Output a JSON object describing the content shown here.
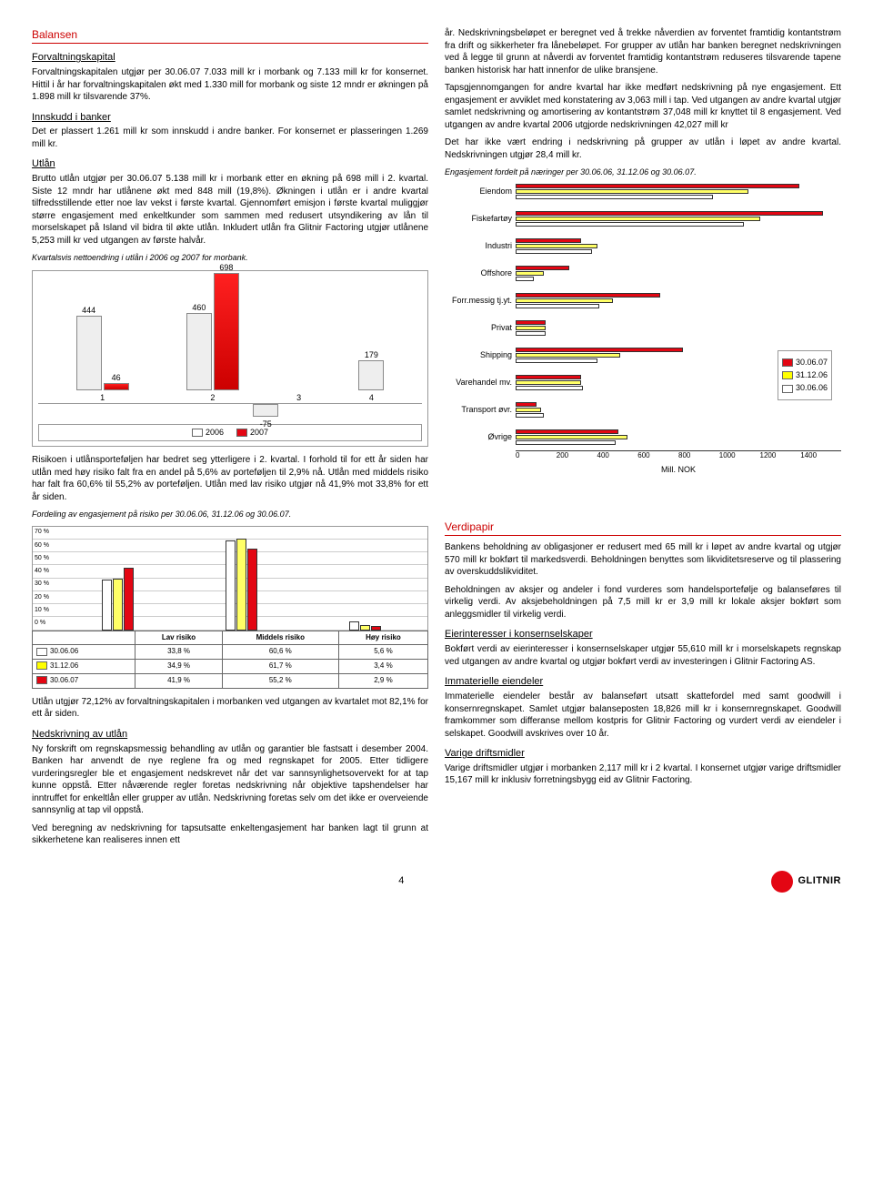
{
  "left": {
    "title": "Balansen",
    "sec1_h": "Forvaltningskapital",
    "sec1_p": "Forvaltningskapitalen utgjør per 30.06.07 7.033 mill kr i morbank og 7.133 mill kr for konsernet. Hittil i år har forvaltningskapitalen økt med 1.330 mill for morbank og siste 12 mndr er økningen på 1.898 mill kr tilsvarende 37%.",
    "sec2_h": "Innskudd i banker",
    "sec2_p": "Det er plassert 1.261 mill kr som innskudd i andre banker. For konsernet er plasseringen 1.269 mill kr.",
    "sec3_h": "Utlån",
    "sec3_p1": "Brutto utlån utgjør per 30.06.07 5.138 mill kr i morbank etter en økning på 698 mill i 2. kvartal. Siste 12 mndr har utlånene økt med 848 mill (19,8%). Økningen i utlån er i andre kvartal tilfredsstillende etter noe lav vekst i første kvartal. Gjennomført emisjon i første kvartal muliggjør større engasjement med enkeltkunder som sammen med redusert utsyndikering av lån til morselskapet på Island vil bidra til økte utlån. Inkludert utlån fra Glitnir Factoring utgjør utlånene 5,253 mill kr ved utgangen av første halvår.",
    "cap1": "Kvartalsvis nettoendring i utlån i 2006 og 2007 for morbank.",
    "bar": {
      "y_max": 700,
      "neg_min": -75,
      "groups": [
        {
          "x": "1",
          "white": 444,
          "red": 46
        },
        {
          "x": "2",
          "white": 460,
          "red": 698
        },
        {
          "x": "3",
          "white": -75,
          "red": null
        },
        {
          "x": "4",
          "white": 179,
          "red": null
        }
      ],
      "colors": {
        "2006": "#ffffff",
        "2007": "#e30613"
      },
      "legend": [
        "2006",
        "2007"
      ]
    },
    "sec3_p2": "Risikoen i utlånsporteføljen har bedret seg ytterligere i 2. kvartal. I forhold til for ett år siden har utlån med høy risiko falt fra en andel på 5,6% av porteføljen til 2,9% nå. Utlån med middels risiko har falt fra 60,6% til 55,2% av porteføljen. Utlån med lav risiko utgjør nå 41,9% mot 33,8% for ett år siden.",
    "cap2": "Fordeling av engasjement på risiko per 30.06.06, 31.12.06 og 30.06.07.",
    "risk": {
      "yticks": [
        "70 %",
        "60 %",
        "50 %",
        "40 %",
        "30 %",
        "20 %",
        "10 %",
        "0 %"
      ],
      "groups": [
        "Lav risiko",
        "Middels risiko",
        "Høy risiko"
      ],
      "series": [
        {
          "name": "30.06.06",
          "color": "#ffffff",
          "vals": [
            33.8,
            60.6,
            5.6
          ]
        },
        {
          "name": "31.12.06",
          "color": "#ffff66",
          "vals": [
            34.9,
            61.7,
            3.4
          ]
        },
        {
          "name": "30.06.07",
          "color": "#e30613",
          "vals": [
            41.9,
            55.2,
            2.9
          ]
        }
      ]
    },
    "sec3_p3": "Utlån utgjør 72,12% av forvaltningskapitalen i morbanken ved utgangen av kvartalet mot 82,1% for ett år siden.",
    "sec4_h": "Nedskrivning av utlån",
    "sec4_p1": "Ny forskrift om regnskapsmessig behandling av utlån og garantier ble fastsatt i desember 2004. Banken har anvendt de nye reglene fra og med regnskapet for 2005. Etter tidligere vurderingsregler ble et engasjement nedskrevet når det var sannsynlighetsovervekt for at tap kunne oppstå. Etter nåværende regler foretas nedskrivning når objektive tapshendelser har inntruffet for enkeltlån eller grupper av utlån. Nedskrivning foretas selv om det ikke er overveiende sannsynlig at tap vil oppstå.",
    "sec4_p2": "Ved beregning av nedskrivning for tapsutsatte enkeltengasjement har banken lagt til grunn at sikkerhetene kan realiseres innen ett"
  },
  "right": {
    "p1": "år. Nedskrivningsbeløpet er beregnet ved å trekke nåverdien av forventet framtidig kontantstrøm fra drift og sikkerheter fra lånebeløpet. For grupper av utlån har banken beregnet nedskrivningen ved å legge til grunn at nåverdi av forventet framtidig kontantstrøm reduseres tilsvarende tapene banken historisk har hatt innenfor de ulike bransjene.",
    "p2": "Tapsgjennomgangen for andre kvartal har ikke medført nedskrivning på nye engasjement. Ett engasjement er avviklet med konstatering av 3,063 mill i tap. Ved utgangen av andre kvartal utgjør samlet nedskrivning og amortisering av kontantstrøm 37,048 mill kr knyttet til 8 engasjement. Ved utgangen av andre kvartal 2006 utgjorde nedskrivningen 42,027 mill kr",
    "p3": "Det har ikke vært endring i nedskrivning på grupper av utlån i løpet av andre kvartal. Nedskrivningen utgjør 28,4 mill kr.",
    "cap3": "Engasjement fordelt på næringer per 30.06.06, 31.12.06 og 30.06.07.",
    "hbar": {
      "x_max": 1400,
      "x_ticks": [
        0,
        200,
        400,
        600,
        800,
        1000,
        1200,
        1400
      ],
      "x_label": "Mill. NOK",
      "categories": [
        "Eiendom",
        "Fiskefartøy",
        "Industri",
        "Offshore",
        "Forr.messig tj.yt.",
        "Privat",
        "Shipping",
        "Varehandel mv.",
        "Transport øvr.",
        "Øvrige"
      ],
      "series_legend": [
        "30.06.07",
        "31.12.06",
        "30.06.06"
      ],
      "colors": [
        "#e30613",
        "#ffff66",
        "#ffffff"
      ],
      "data": [
        [
          1220,
          1000,
          850
        ],
        [
          1320,
          1050,
          980
        ],
        [
          280,
          350,
          330
        ],
        [
          230,
          120,
          80
        ],
        [
          620,
          420,
          360
        ],
        [
          130,
          130,
          130
        ],
        [
          720,
          450,
          350
        ],
        [
          280,
          280,
          290
        ],
        [
          90,
          110,
          120
        ],
        [
          440,
          480,
          430
        ]
      ]
    },
    "sec5_h": "Verdipapir",
    "sec5_p": "Bankens beholdning av obligasjoner er redusert med 65 mill kr i løpet av andre kvartal og utgjør 570 mill kr bokført til markedsverdi. Beholdningen benyttes som likviditetsreserve og til plassering av overskuddslikviditet.",
    "sec5_p2": "Beholdningen av aksjer og andeler i fond vurderes som handelsportefølje og balanseføres til virkelig verdi. Av aksjebeholdningen på 7,5 mill kr er 3,9 mill kr lokale aksjer bokført som anleggsmidler til virkelig verdi.",
    "sec6_h": "Eierinteresser i konsernselskaper",
    "sec6_p": "Bokført verdi av eierinteresser i konsernselskaper utgjør 55,610 mill kr i morselskapets regnskap ved utgangen av andre kvartal og utgjør bokført verdi av investeringen i Glitnir Factoring AS.",
    "sec7_h": "Immaterielle eiendeler",
    "sec7_p": "Immaterielle eiendeler består av balanseført utsatt skattefordel med samt goodwill i konsernregnskapet. Samlet utgjør balanseposten 18,826 mill kr i konsernregnskapet. Goodwill framkommer som differanse mellom kostpris for Glitnir Factoring og vurdert verdi av eiendeler i selskapet. Goodwill avskrives over 10 år.",
    "sec8_h": "Varige driftsmidler",
    "sec8_p": "Varige driftsmidler utgjør i morbanken 2,117 mill kr i 2 kvartal. I konsernet utgjør varige driftsmidler 15,167 mill kr inklusiv forretningsbygg eid av Glitnir Factoring."
  },
  "footer": {
    "page": "4",
    "brand": "GLITNIR"
  }
}
